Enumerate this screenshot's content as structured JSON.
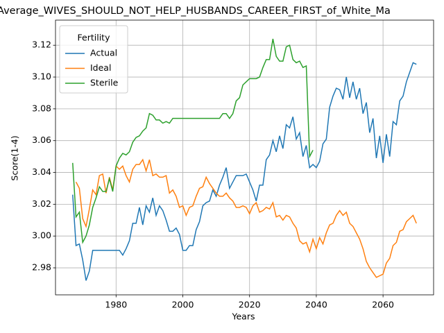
{
  "chart_data": {
    "type": "line",
    "title": "Average_WIVES_SHOULD_NOT_HELP_HUSBANDS_CAREER_FIRST_of_White_Ma",
    "xlabel": "Years",
    "ylabel": "Score(1-4)",
    "x": [
      1967,
      1968,
      1969,
      1970,
      1971,
      1972,
      1973,
      1974,
      1975,
      1976,
      1977,
      1978,
      1979,
      1980,
      1981,
      1982,
      1983,
      1984,
      1985,
      1986,
      1987,
      1988,
      1989,
      1990,
      1991,
      1992,
      1993,
      1994,
      1995,
      1996,
      1997,
      1998,
      1999,
      2000,
      2001,
      2002,
      2003,
      2004,
      2005,
      2006,
      2007,
      2008,
      2009,
      2010,
      2011,
      2012,
      2013,
      2014,
      2015,
      2016,
      2017,
      2018,
      2019,
      2020,
      2021,
      2022,
      2023,
      2024,
      2025,
      2026,
      2027,
      2028,
      2029,
      2030,
      2031,
      2032,
      2033,
      2034,
      2035,
      2036,
      2037,
      2038,
      2039,
      2040,
      2041,
      2042,
      2043,
      2044,
      2045,
      2046,
      2047,
      2048,
      2049,
      2050,
      2051,
      2052,
      2053,
      2054,
      2055,
      2056,
      2057,
      2058,
      2059,
      2060,
      2061,
      2062,
      2063,
      2064,
      2065,
      2066,
      2067,
      2068,
      2069,
      2070
    ],
    "series": [
      {
        "name": "Actual",
        "color": "#1f77b4",
        "values": [
          3.026,
          2.994,
          2.995,
          2.985,
          2.972,
          2.978,
          2.991,
          2.991,
          2.991,
          2.991,
          2.991,
          2.991,
          2.991,
          2.991,
          2.991,
          2.988,
          2.992,
          2.997,
          3.008,
          3.008,
          3.018,
          3.007,
          3.019,
          3.015,
          3.024,
          3.013,
          3.019,
          3.016,
          3.01,
          3.003,
          3.003,
          3.005,
          3.001,
          2.991,
          2.991,
          2.994,
          2.994,
          3.004,
          3.009,
          3.019,
          3.021,
          3.022,
          3.029,
          3.025,
          3.032,
          3.037,
          3.043,
          3.03,
          3.034,
          3.038,
          3.038,
          3.038,
          3.039,
          3.034,
          3.029,
          3.022,
          3.032,
          3.032,
          3.048,
          3.051,
          3.06,
          3.053,
          3.063,
          3.055,
          3.07,
          3.068,
          3.075,
          3.061,
          3.065,
          3.05,
          3.057,
          3.043,
          3.045,
          3.043,
          3.047,
          3.058,
          3.061,
          3.081,
          3.088,
          3.093,
          3.092,
          3.086,
          3.1,
          3.087,
          3.097,
          3.086,
          3.093,
          3.077,
          3.084,
          3.065,
          3.074,
          3.049,
          3.063,
          3.046,
          3.064,
          3.05,
          3.072,
          3.07,
          3.085,
          3.088,
          3.097,
          3.103,
          3.109,
          3.108
        ]
      },
      {
        "name": "Ideal",
        "color": "#ff7f0e",
        "values": [
          null,
          3.034,
          3.03,
          3.011,
          3.006,
          3.017,
          3.029,
          3.026,
          3.038,
          3.039,
          3.027,
          3.037,
          3.029,
          3.044,
          3.042,
          3.044,
          3.038,
          3.034,
          3.042,
          3.045,
          3.045,
          3.048,
          3.041,
          3.048,
          3.038,
          3.039,
          3.037,
          3.037,
          3.038,
          3.027,
          3.029,
          3.025,
          3.018,
          3.019,
          3.013,
          3.018,
          3.019,
          3.025,
          3.03,
          3.031,
          3.037,
          3.033,
          3.03,
          3.027,
          3.025,
          3.025,
          3.027,
          3.024,
          3.022,
          3.018,
          3.018,
          3.019,
          3.018,
          3.014,
          3.019,
          3.021,
          3.015,
          3.016,
          3.018,
          3.017,
          3.021,
          3.012,
          3.013,
          3.01,
          3.013,
          3.012,
          3.008,
          3.005,
          2.997,
          2.995,
          2.996,
          2.99,
          2.998,
          2.992,
          2.999,
          2.995,
          3.002,
          3.007,
          3.008,
          3.013,
          3.016,
          3.013,
          3.015,
          3.008,
          3.006,
          3.002,
          2.998,
          2.992,
          2.984,
          2.98,
          2.977,
          2.974,
          2.975,
          2.976,
          2.983,
          2.986,
          2.994,
          2.996,
          3.003,
          3.004,
          3.009,
          3.011,
          3.013,
          3.008
        ]
      },
      {
        "name": "Sterile",
        "color": "#2ca02c",
        "values": [
          3.046,
          3.012,
          3.015,
          2.996,
          3.0,
          3.007,
          3.018,
          3.024,
          3.031,
          3.028,
          3.028,
          3.036,
          3.028,
          3.044,
          3.049,
          3.052,
          3.051,
          3.053,
          3.059,
          3.062,
          3.063,
          3.066,
          3.068,
          3.077,
          3.076,
          3.073,
          3.073,
          3.071,
          3.072,
          3.071,
          3.074,
          3.074,
          3.074,
          3.074,
          3.074,
          3.074,
          3.074,
          3.074,
          3.074,
          3.074,
          3.074,
          3.074,
          3.074,
          3.074,
          3.074,
          3.077,
          3.077,
          3.074,
          3.077,
          3.085,
          3.087,
          3.095,
          3.097,
          3.099,
          3.099,
          3.099,
          3.1,
          3.106,
          3.111,
          3.111,
          3.124,
          3.113,
          3.11,
          3.11,
          3.119,
          3.12,
          3.111,
          3.109,
          3.11,
          3.106,
          3.107,
          3.05,
          3.054,
          null,
          null,
          null,
          null,
          null,
          null,
          null,
          null,
          null,
          null,
          null,
          null,
          null,
          null,
          null,
          null,
          null,
          null,
          null,
          null,
          null,
          null,
          null,
          null,
          null,
          null,
          null,
          null,
          null,
          null,
          null
        ]
      }
    ],
    "xlim": [
      1961.85,
      2075.15
    ],
    "xticks": [
      1980,
      2000,
      2020,
      2040,
      2060
    ],
    "ylim": [
      2.963,
      3.1358
    ],
    "yticks": [
      2.98,
      {
        "value": 3,
        "label": "3.00"
      },
      3.02,
      3.04,
      3.06,
      3.08,
      {
        "value": 3.1,
        "label": "3.10"
      },
      3.12
    ],
    "grid": true,
    "legend_title": "Fertility",
    "legend_position": "upper left"
  }
}
